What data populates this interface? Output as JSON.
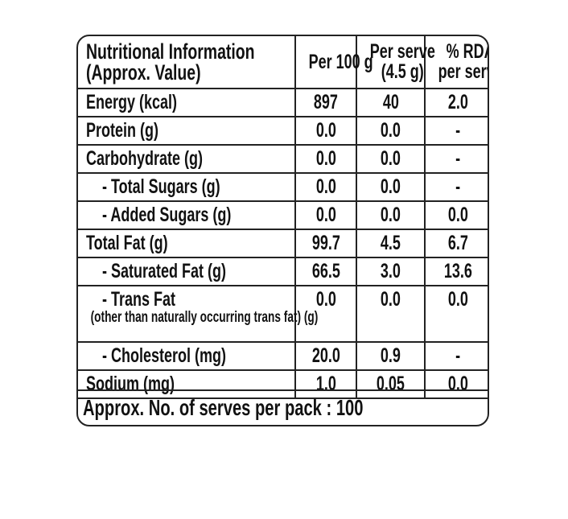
{
  "header": {
    "nutrient": [
      "Nutritional Information",
      "(Approx. Value)"
    ],
    "per_100g": "Per 100 g",
    "per_serve": [
      "Per serve",
      "(4.5 g)"
    ],
    "rda": [
      "% RDA",
      "per serve"
    ]
  },
  "rows": [
    {
      "label": "Energy (kcal)",
      "per100": "897",
      "serve": "40",
      "rda": "2.0"
    },
    {
      "label": "Protein (g)",
      "per100": "0.0",
      "serve": "0.0",
      "rda": "-"
    },
    {
      "label": "Carbohydrate (g)",
      "per100": "0.0",
      "serve": "0.0",
      "rda": "-"
    },
    {
      "label": "- Total Sugars (g)",
      "per100": "0.0",
      "serve": "0.0",
      "rda": "-"
    },
    {
      "label": "- Added Sugars (g)",
      "per100": "0.0",
      "serve": "0.0",
      "rda": "0.0"
    },
    {
      "label": "Total Fat (g)",
      "per100": "99.7",
      "serve": "4.5",
      "rda": "6.7"
    },
    {
      "label": "- Saturated Fat (g)",
      "per100": "66.5",
      "serve": "3.0",
      "rda": "13.6"
    },
    {
      "label": "- Trans Fat",
      "sublabel": "(other than naturally occurring trans fat) (g)",
      "per100": "0.0",
      "serve": "0.0",
      "rda": "0.0"
    },
    {
      "label": "- Cholesterol (mg)",
      "per100": "20.0",
      "serve": "0.9",
      "rda": "-"
    },
    {
      "label": "Sodium (mg)",
      "per100": "1.0",
      "serve": "0.05",
      "rda": "0.0"
    }
  ],
  "footer": "Approx. No. of serves per pack : 100"
}
